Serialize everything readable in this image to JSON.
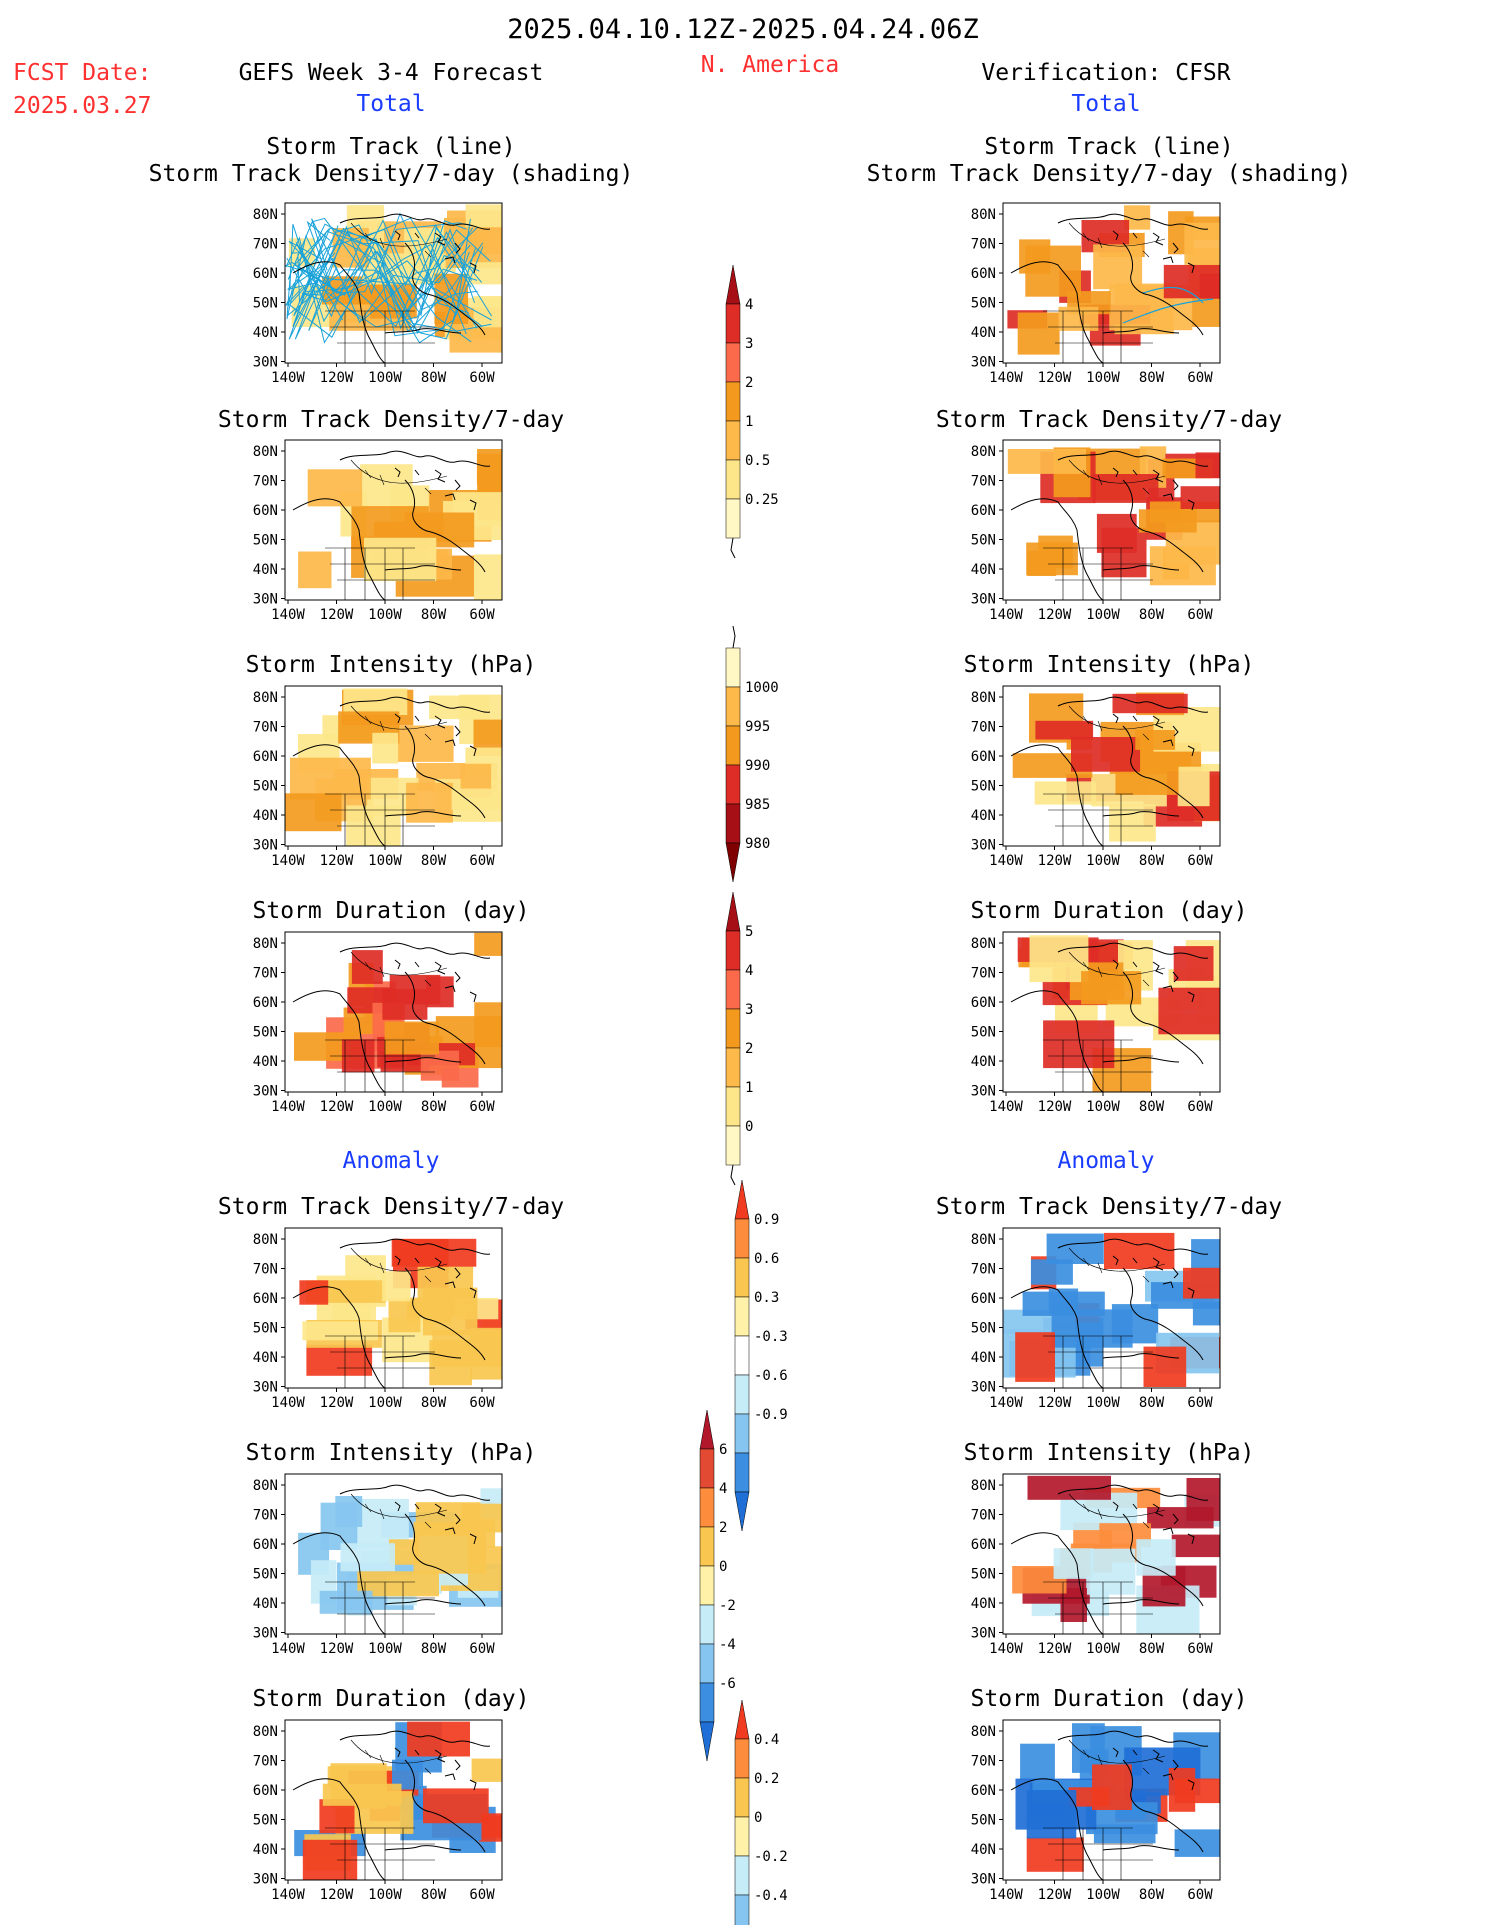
{
  "header": {
    "period": "2025.04.10.12Z-2025.04.24.06Z",
    "fcst_label": "FCST Date:",
    "fcst_date": "2025.03.27",
    "model": "GEFS Week 3-4 Forecast",
    "region": "N. America",
    "verification": "Verification: CFSR",
    "total_label": "Total",
    "anomaly_label": "Anomaly"
  },
  "rows": [
    {
      "title1": "Storm Track (line)",
      "title2": "Storm Track Density/7-day (shading)"
    },
    {
      "title1": "Storm Track Density/7-day",
      "title2": ""
    },
    {
      "title1": "Storm Intensity (hPa)",
      "title2": ""
    },
    {
      "title1": "Storm Duration (day)",
      "title2": ""
    },
    {
      "title1": "Storm Track Density/7-day",
      "title2": ""
    },
    {
      "title1": "Storm Intensity (hPa)",
      "title2": ""
    },
    {
      "title1": "Storm Duration (day)",
      "title2": ""
    }
  ],
  "axes": {
    "lat_labels": [
      "80N",
      "70N",
      "60N",
      "50N",
      "40N",
      "30N"
    ],
    "lon_labels": [
      "140W",
      "120W",
      "100W",
      "80W",
      "60W"
    ]
  },
  "colorbars": [
    {
      "name": "density",
      "labels": [
        "4",
        "3",
        "2",
        "1",
        "0.5",
        "0.25"
      ],
      "colors": [
        "#a50f15",
        "#de2d26",
        "#fb6a4a",
        "#f39a1e",
        "#fdb94a",
        "#fde68a",
        "#fff8c4"
      ]
    },
    {
      "name": "intensity",
      "labels": [
        "1000",
        "995",
        "990",
        "985",
        "980"
      ],
      "colors": [
        "#fff8c4",
        "#fdb94a",
        "#f39a1e",
        "#de2d26",
        "#a50f15",
        "#7f0000"
      ]
    },
    {
      "name": "duration",
      "labels": [
        "5",
        "4",
        "3",
        "2",
        "1",
        "0"
      ],
      "colors": [
        "#a50f15",
        "#de2d26",
        "#fb6a4a",
        "#f39a1e",
        "#fdb94a",
        "#fde68a",
        "#fff8c4"
      ]
    },
    {
      "name": "density-anomaly",
      "labels": [
        "0.9",
        "0.6",
        "0.3",
        "-0.3",
        "-0.6",
        "-0.9"
      ],
      "colors": [
        "#f03b20",
        "#fd8d3c",
        "#f9c74f",
        "#fff2a8",
        "#ffffff",
        "#c6ecf7",
        "#85c5f0",
        "#3b8ee0",
        "#1f6fd6"
      ]
    },
    {
      "name": "intensity-anomaly",
      "labels": [
        "6",
        "4",
        "2",
        "0",
        "-2",
        "-4",
        "-6"
      ],
      "colors": [
        "#b2182b",
        "#e34a33",
        "#fd8d3c",
        "#f9c74f",
        "#fff2a8",
        "#c6ecf7",
        "#85c5f0",
        "#3b8ee0",
        "#1f6fd6"
      ]
    },
    {
      "name": "duration-anomaly",
      "labels": [
        "0.4",
        "0.2",
        "0",
        "-0.2",
        "-0.4"
      ],
      "colors": [
        "#f03b20",
        "#fd8d3c",
        "#f9c74f",
        "#fff2a8",
        "#c6ecf7",
        "#85c5f0",
        "#3b8ee0"
      ]
    }
  ],
  "colors": {
    "forecast_red": "#ff3030",
    "label_blue": "#1a3cff",
    "track_line": "#1aa3d9"
  }
}
